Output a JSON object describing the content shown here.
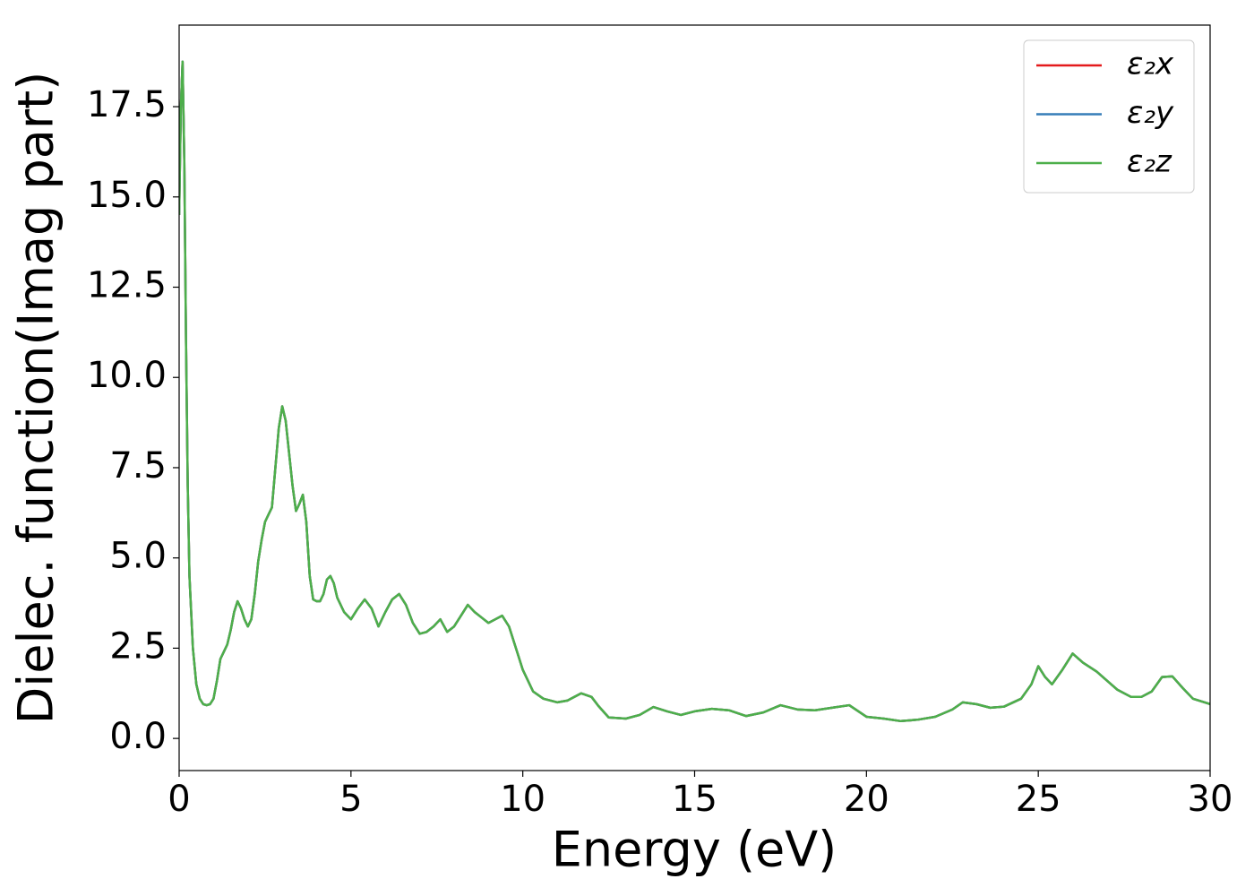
{
  "chart_data": {
    "type": "line",
    "xlabel": "Energy (eV)",
    "ylabel": "Dielec. function(Imag part)",
    "x": [
      0,
      0.05,
      0.1,
      0.15,
      0.2,
      0.25,
      0.3,
      0.4,
      0.5,
      0.6,
      0.7,
      0.8,
      0.9,
      1.0,
      1.1,
      1.2,
      1.3,
      1.4,
      1.5,
      1.6,
      1.7,
      1.8,
      1.9,
      2.0,
      2.1,
      2.2,
      2.3,
      2.4,
      2.5,
      2.6,
      2.7,
      2.8,
      2.9,
      3.0,
      3.1,
      3.2,
      3.3,
      3.4,
      3.5,
      3.6,
      3.7,
      3.8,
      3.9,
      4.0,
      4.1,
      4.2,
      4.3,
      4.4,
      4.5,
      4.6,
      4.8,
      5.0,
      5.2,
      5.4,
      5.6,
      5.8,
      6.0,
      6.2,
      6.4,
      6.6,
      6.8,
      7.0,
      7.2,
      7.4,
      7.6,
      7.8,
      8.0,
      8.2,
      8.4,
      8.6,
      8.8,
      9.0,
      9.2,
      9.4,
      9.6,
      9.8,
      10.0,
      10.3,
      10.6,
      11.0,
      11.3,
      11.7,
      12.0,
      12.2,
      12.5,
      13.0,
      13.4,
      13.8,
      14.2,
      14.6,
      15.0,
      15.5,
      16.0,
      16.5,
      17.0,
      17.5,
      18.0,
      18.5,
      19.0,
      19.5,
      20.0,
      20.5,
      21.0,
      21.5,
      22.0,
      22.5,
      22.8,
      23.2,
      23.6,
      24.0,
      24.5,
      24.8,
      25.0,
      25.2,
      25.4,
      25.7,
      26.0,
      26.3,
      26.7,
      27.0,
      27.3,
      27.7,
      28.0,
      28.3,
      28.6,
      28.9,
      29.2,
      29.5,
      30.0
    ],
    "series": [
      {
        "name": "ε₂x",
        "color": "#e41a1c",
        "values": [
          14.5,
          17.5,
          18.75,
          16,
          11,
          7,
          4.5,
          2.5,
          1.5,
          1.1,
          0.95,
          0.92,
          0.95,
          1.1,
          1.6,
          2.2,
          2.4,
          2.6,
          3.0,
          3.5,
          3.8,
          3.6,
          3.3,
          3.1,
          3.3,
          4.0,
          4.9,
          5.5,
          6.0,
          6.2,
          6.4,
          7.5,
          8.6,
          9.2,
          8.8,
          7.9,
          7.0,
          6.3,
          6.5,
          6.75,
          6.0,
          4.5,
          3.85,
          3.8,
          3.8,
          4.0,
          4.4,
          4.5,
          4.3,
          3.9,
          3.5,
          3.3,
          3.6,
          3.85,
          3.6,
          3.1,
          3.5,
          3.85,
          4.0,
          3.7,
          3.2,
          2.9,
          2.95,
          3.1,
          3.3,
          2.95,
          3.1,
          3.4,
          3.7,
          3.5,
          3.35,
          3.2,
          3.3,
          3.4,
          3.1,
          2.5,
          1.9,
          1.3,
          1.1,
          1.0,
          1.05,
          1.25,
          1.15,
          0.9,
          0.58,
          0.55,
          0.65,
          0.87,
          0.75,
          0.65,
          0.75,
          0.82,
          0.78,
          0.62,
          0.72,
          0.92,
          0.8,
          0.78,
          0.85,
          0.92,
          0.6,
          0.55,
          0.48,
          0.52,
          0.6,
          0.8,
          1.0,
          0.95,
          0.85,
          0.88,
          1.1,
          1.5,
          2.0,
          1.7,
          1.5,
          1.9,
          2.35,
          2.1,
          1.85,
          1.6,
          1.35,
          1.15,
          1.15,
          1.3,
          1.7,
          1.72,
          1.4,
          1.1,
          0.95
        ]
      },
      {
        "name": "ε₂y",
        "color": "#377eb8",
        "values": [
          14.5,
          17.5,
          18.75,
          16,
          11,
          7,
          4.5,
          2.5,
          1.5,
          1.1,
          0.95,
          0.92,
          0.95,
          1.1,
          1.6,
          2.2,
          2.4,
          2.6,
          3.0,
          3.5,
          3.8,
          3.6,
          3.3,
          3.1,
          3.3,
          4.0,
          4.9,
          5.5,
          6.0,
          6.2,
          6.4,
          7.5,
          8.6,
          9.2,
          8.8,
          7.9,
          7.0,
          6.3,
          6.5,
          6.75,
          6.0,
          4.5,
          3.85,
          3.8,
          3.8,
          4.0,
          4.4,
          4.5,
          4.3,
          3.9,
          3.5,
          3.3,
          3.6,
          3.85,
          3.6,
          3.1,
          3.5,
          3.85,
          4.0,
          3.7,
          3.2,
          2.9,
          2.95,
          3.1,
          3.3,
          2.95,
          3.1,
          3.4,
          3.7,
          3.5,
          3.35,
          3.2,
          3.3,
          3.4,
          3.1,
          2.5,
          1.9,
          1.3,
          1.1,
          1.0,
          1.05,
          1.25,
          1.15,
          0.9,
          0.58,
          0.55,
          0.65,
          0.87,
          0.75,
          0.65,
          0.75,
          0.82,
          0.78,
          0.62,
          0.72,
          0.92,
          0.8,
          0.78,
          0.85,
          0.92,
          0.6,
          0.55,
          0.48,
          0.52,
          0.6,
          0.8,
          1.0,
          0.95,
          0.85,
          0.88,
          1.1,
          1.5,
          2.0,
          1.7,
          1.5,
          1.9,
          2.35,
          2.1,
          1.85,
          1.6,
          1.35,
          1.15,
          1.15,
          1.3,
          1.7,
          1.72,
          1.4,
          1.1,
          0.95
        ]
      },
      {
        "name": "ε₂z",
        "color": "#4daf4a",
        "values": [
          14.5,
          17.5,
          18.75,
          16,
          11,
          7,
          4.5,
          2.5,
          1.5,
          1.1,
          0.95,
          0.92,
          0.95,
          1.1,
          1.6,
          2.2,
          2.4,
          2.6,
          3.0,
          3.5,
          3.8,
          3.6,
          3.3,
          3.1,
          3.3,
          4.0,
          4.9,
          5.5,
          6.0,
          6.2,
          6.4,
          7.5,
          8.6,
          9.2,
          8.8,
          7.9,
          7.0,
          6.3,
          6.5,
          6.75,
          6.0,
          4.5,
          3.85,
          3.8,
          3.8,
          4.0,
          4.4,
          4.5,
          4.3,
          3.9,
          3.5,
          3.3,
          3.6,
          3.85,
          3.6,
          3.1,
          3.5,
          3.85,
          4.0,
          3.7,
          3.2,
          2.9,
          2.95,
          3.1,
          3.3,
          2.95,
          3.1,
          3.4,
          3.7,
          3.5,
          3.35,
          3.2,
          3.3,
          3.4,
          3.1,
          2.5,
          1.9,
          1.3,
          1.1,
          1.0,
          1.05,
          1.25,
          1.15,
          0.9,
          0.58,
          0.55,
          0.65,
          0.87,
          0.75,
          0.65,
          0.75,
          0.82,
          0.78,
          0.62,
          0.72,
          0.92,
          0.8,
          0.78,
          0.85,
          0.92,
          0.6,
          0.55,
          0.48,
          0.52,
          0.6,
          0.8,
          1.0,
          0.95,
          0.85,
          0.88,
          1.1,
          1.5,
          2.0,
          1.7,
          1.5,
          1.9,
          2.35,
          2.1,
          1.85,
          1.6,
          1.35,
          1.15,
          1.15,
          1.3,
          1.7,
          1.72,
          1.4,
          1.1,
          0.95
        ]
      }
    ],
    "xlim": [
      0,
      30
    ],
    "xticks": [
      0,
      5,
      10,
      15,
      20,
      25,
      30
    ],
    "ylim": [
      -0.89,
      19.76
    ],
    "yticks": [
      {
        "value": 0,
        "label": "0.0"
      },
      2.5,
      {
        "value": 5,
        "label": "5.0"
      },
      7.5,
      {
        "value": 10,
        "label": "10.0"
      },
      12.5,
      {
        "value": 15,
        "label": "15.0"
      },
      17.5
    ],
    "legend": "upper right"
  }
}
